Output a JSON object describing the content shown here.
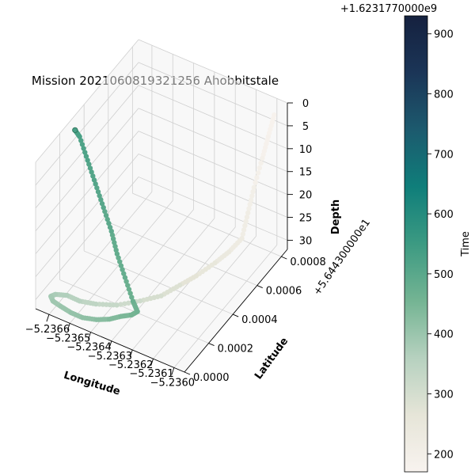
{
  "chart_data": {
    "type": "scatter",
    "projection": "3d",
    "title": "Mission 2021060819321256 Ahobbitstale",
    "xlabel": "Longitude",
    "ylabel": "Latitude",
    "zlabel": "Depth",
    "x_ticks": [
      "−5.2366",
      "−5.2365",
      "−5.2364",
      "−5.2363",
      "−5.2362",
      "−5.2361",
      "−5.2360"
    ],
    "y_ticks": [
      "0.0000",
      "0.0002",
      "0.0004",
      "0.0006",
      "0.0008"
    ],
    "y_offset": "+5.644300000e1",
    "z_ticks": [
      "0",
      "5",
      "10",
      "15",
      "20",
      "25",
      "30"
    ],
    "z_inverted": true,
    "xlim": [
      -5.23665,
      -5.236
    ],
    "ylim": [
      0.0,
      0.00085
    ],
    "zlim": [
      0,
      32
    ],
    "colorbar": {
      "label": "Time",
      "offset": "+1.6231770000e9",
      "ticks": [
        "200",
        "300",
        "400",
        "500",
        "600",
        "700",
        "800",
        "900"
      ],
      "range": [
        170,
        930
      ],
      "colormap": [
        "#f8f3ef",
        "#e6e5d8",
        "#b6d1bf",
        "#74b493",
        "#3c9a82",
        "#0f7e7a",
        "#1c5a6e",
        "#1b3557",
        "#15213f"
      ]
    },
    "grid": true,
    "series": [
      {
        "points": [
          {
            "x": -5.23601,
            "y": 0.00076,
            "z": 0,
            "t": 175
          },
          {
            "x": -5.23602,
            "y": 0.00073,
            "z": 4,
            "t": 180
          },
          {
            "x": -5.23603,
            "y": 0.0007,
            "z": 8,
            "t": 186
          },
          {
            "x": -5.23604,
            "y": 0.00065,
            "z": 13,
            "t": 195
          },
          {
            "x": -5.23604,
            "y": 0.0006,
            "z": 17,
            "t": 205
          },
          {
            "x": -5.23604,
            "y": 0.00055,
            "z": 21,
            "t": 215
          },
          {
            "x": -5.23607,
            "y": 0.0005,
            "z": 23,
            "t": 230
          },
          {
            "x": -5.23611,
            "y": 0.00046,
            "z": 25,
            "t": 245
          },
          {
            "x": -5.23616,
            "y": 0.0004,
            "z": 27,
            "t": 260
          },
          {
            "x": -5.2362,
            "y": 0.00034,
            "z": 28,
            "t": 275
          },
          {
            "x": -5.23625,
            "y": 0.00028,
            "z": 29.5,
            "t": 290
          },
          {
            "x": -5.23631,
            "y": 0.00022,
            "z": 30,
            "t": 305
          },
          {
            "x": -5.23638,
            "y": 0.00016,
            "z": 30.5,
            "t": 320
          },
          {
            "x": -5.23645,
            "y": 0.00012,
            "z": 30.5,
            "t": 335
          },
          {
            "x": -5.23651,
            "y": 0.0001,
            "z": 30.5,
            "t": 350
          },
          {
            "x": -5.23656,
            "y": 9e-05,
            "z": 30,
            "t": 362
          },
          {
            "x": -5.2366,
            "y": 7e-05,
            "z": 30,
            "t": 372
          },
          {
            "x": -5.23661,
            "y": 5e-05,
            "z": 30,
            "t": 380
          },
          {
            "x": -5.23659,
            "y": 3e-05,
            "z": 30,
            "t": 388
          },
          {
            "x": -5.23655,
            "y": 2e-05,
            "z": 30,
            "t": 396
          },
          {
            "x": -5.2365,
            "y": 1e-05,
            "z": 30,
            "t": 404
          },
          {
            "x": -5.23645,
            "y": 1e-05,
            "z": 30,
            "t": 412
          },
          {
            "x": -5.2364,
            "y": 3e-05,
            "z": 30,
            "t": 420
          },
          {
            "x": -5.23636,
            "y": 6e-05,
            "z": 30,
            "t": 430
          },
          {
            "x": -5.23633,
            "y": 0.0001,
            "z": 30,
            "t": 440
          },
          {
            "x": -5.2363,
            "y": 0.00013,
            "z": 30,
            "t": 450
          },
          {
            "x": -5.23629,
            "y": 0.00016,
            "z": 30,
            "t": 458
          },
          {
            "x": -5.23632,
            "y": 0.00018,
            "z": 29,
            "t": 466
          },
          {
            "x": -5.23636,
            "y": 0.00019,
            "z": 25,
            "t": 474
          },
          {
            "x": -5.2364,
            "y": 0.0002,
            "z": 21,
            "t": 482
          },
          {
            "x": -5.23643,
            "y": 0.00021,
            "z": 17,
            "t": 490
          },
          {
            "x": -5.23647,
            "y": 0.00022,
            "z": 13,
            "t": 498
          },
          {
            "x": -5.23651,
            "y": 0.00023,
            "z": 9,
            "t": 506
          },
          {
            "x": -5.23655,
            "y": 0.00024,
            "z": 5,
            "t": 514
          },
          {
            "x": -5.23659,
            "y": 0.00025,
            "z": 1,
            "t": 522
          },
          {
            "x": -5.23661,
            "y": 0.00025,
            "z": 0,
            "t": 530
          }
        ]
      }
    ]
  }
}
